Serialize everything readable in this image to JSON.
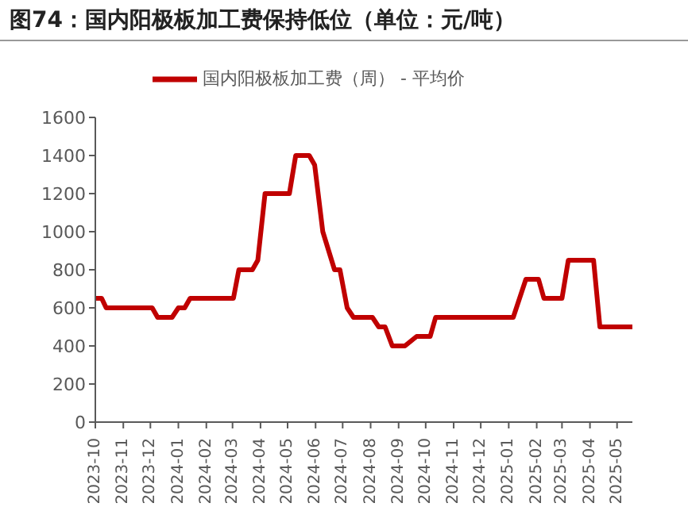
{
  "chart_data": {
    "type": "line",
    "title": "图74：国内阳极板加工费保持低位（单位：元/吨）",
    "x": [
      "2023-10-01",
      "2023-10-08",
      "2023-10-13",
      "2023-12-03",
      "2023-12-09",
      "2023-12-25",
      "2024-01-01",
      "2024-01-08",
      "2024-01-14",
      "2024-03-02",
      "2024-03-08",
      "2024-03-23",
      "2024-03-29",
      "2024-04-06",
      "2024-05-03",
      "2024-05-10",
      "2024-05-25",
      "2024-05-31",
      "2024-06-09",
      "2024-06-22",
      "2024-06-28",
      "2024-07-06",
      "2024-07-13",
      "2024-08-03",
      "2024-08-10",
      "2024-08-17",
      "2024-08-25",
      "2024-09-08",
      "2024-09-21",
      "2024-10-06",
      "2024-10-12",
      "2025-01-06",
      "2025-01-20",
      "2025-02-03",
      "2025-02-09",
      "2025-03-01",
      "2025-03-08",
      "2025-04-05",
      "2025-04-12",
      "2025-05-18"
    ],
    "series": [
      {
        "name": "国内阳极板加工费（周） - 平均价",
        "color": "#c00000",
        "values": [
          650,
          650,
          600,
          600,
          550,
          550,
          600,
          600,
          650,
          650,
          800,
          800,
          850,
          1200,
          1200,
          1400,
          1400,
          1350,
          1000,
          800,
          800,
          600,
          550,
          550,
          500,
          500,
          400,
          400,
          450,
          450,
          550,
          550,
          750,
          750,
          650,
          650,
          850,
          850,
          500,
          500
        ]
      }
    ],
    "xlim": [
      "2023-10-01",
      "2025-05-18"
    ],
    "xticks": [
      "2023-10",
      "2023-11",
      "2023-12",
      "2024-01",
      "2024-02",
      "2024-03",
      "2024-04",
      "2024-05",
      "2024-06",
      "2024-07",
      "2024-08",
      "2024-09",
      "2024-10",
      "2024-11",
      "2024-12",
      "2025-01",
      "2025-02",
      "2025-03",
      "2025-04",
      "2025-05"
    ],
    "ylim": [
      0,
      1600
    ],
    "yticks": [
      0,
      200,
      400,
      600,
      800,
      1000,
      1200,
      1400,
      1600
    ],
    "grid": false,
    "legend": "top",
    "marker": "none",
    "line_style": "solid"
  }
}
